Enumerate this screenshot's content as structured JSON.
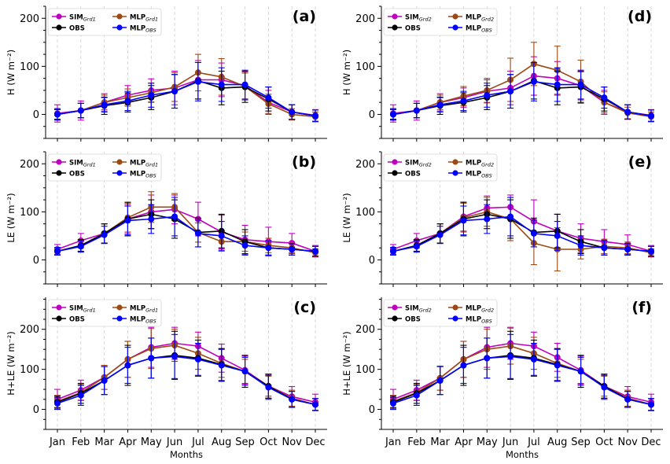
{
  "chart_data": {
    "type": "line",
    "xlabel": "Months",
    "categories": [
      "Jan",
      "Feb",
      "Mar",
      "Apr",
      "May",
      "Jun",
      "Jul",
      "Aug",
      "Sep",
      "Oct",
      "Nov",
      "Dec"
    ],
    "colors": {
      "SIM": "#c000c0",
      "MLP": "#9c4a14",
      "OBS": "#000000",
      "MLP_OBS": "#0000ff",
      "grid": "#cfcfcf"
    },
    "panels": [
      {
        "label": "(a)",
        "ylabel": "H (W m⁻²)",
        "ylim": [
          -50,
          225
        ],
        "yticks": [
          0,
          100,
          200
        ],
        "legend": [
          {
            "key": "SIM",
            "base": "SIM",
            "sub": "Grd1"
          },
          {
            "key": "MLP",
            "base": "MLP",
            "sub": "Grd1"
          },
          {
            "key": "OBS",
            "base": "OBS",
            "sub": ""
          },
          {
            "key": "MLP_OBS",
            "base": "MLP",
            "sub": "OBS"
          }
        ],
        "series": [
          {
            "key": "SIM",
            "values": [
              2,
              8,
              25,
              40,
              50,
              55,
              72,
              72,
              60,
              25,
              5,
              -2
            ],
            "err": [
              18,
              20,
              18,
              20,
              24,
              35,
              40,
              35,
              30,
              25,
              15,
              12
            ]
          },
          {
            "key": "MLP",
            "values": [
              0,
              8,
              25,
              35,
              45,
              57,
              87,
              78,
              58,
              22,
              0,
              -5
            ],
            "err": [
              12,
              15,
              15,
              18,
              20,
              30,
              38,
              38,
              28,
              20,
              12,
              10
            ]
          },
          {
            "key": "OBS",
            "values": [
              0,
              8,
              18,
              25,
              35,
              48,
              70,
              55,
              57,
              32,
              5,
              -3
            ],
            "err": [
              10,
              15,
              18,
              20,
              25,
              35,
              38,
              35,
              32,
              25,
              15,
              12
            ]
          },
          {
            "key": "MLP_OBS",
            "values": [
              0,
              8,
              20,
              28,
              40,
              48,
              68,
              62,
              62,
              35,
              5,
              -3
            ],
            "err": [
              12,
              15,
              15,
              20,
              25,
              35,
              40,
              35,
              30,
              22,
              15,
              12
            ]
          }
        ]
      },
      {
        "label": "(d)",
        "ylabel": "H (W m⁻²)",
        "ylim": [
          -50,
          225
        ],
        "yticks": [
          0,
          100,
          200
        ],
        "legend": [
          {
            "key": "SIM",
            "base": "SIM",
            "sub": "Grd2"
          },
          {
            "key": "MLP",
            "base": "MLP",
            "sub": "Grd2"
          },
          {
            "key": "OBS",
            "base": "OBS",
            "sub": ""
          },
          {
            "key": "MLP_OBS",
            "base": "MLP",
            "sub": "OBS"
          }
        ],
        "series": [
          {
            "key": "SIM",
            "values": [
              2,
              8,
              25,
              35,
              48,
              55,
              80,
              75,
              60,
              25,
              5,
              -2
            ],
            "err": [
              18,
              20,
              18,
              20,
              24,
              35,
              40,
              35,
              30,
              25,
              15,
              12
            ]
          },
          {
            "key": "MLP",
            "values": [
              0,
              8,
              25,
              38,
              50,
              72,
              105,
              92,
              68,
              25,
              3,
              -5
            ],
            "err": [
              12,
              15,
              15,
              20,
              25,
              45,
              45,
              50,
              45,
              22,
              12,
              10
            ]
          },
          {
            "key": "OBS",
            "values": [
              0,
              8,
              18,
              25,
              35,
              48,
              70,
              55,
              57,
              32,
              5,
              -3
            ],
            "err": [
              10,
              15,
              18,
              20,
              25,
              35,
              38,
              35,
              32,
              25,
              15,
              12
            ]
          },
          {
            "key": "MLP_OBS",
            "values": [
              0,
              8,
              20,
              28,
              40,
              48,
              68,
              62,
              62,
              35,
              5,
              -3
            ],
            "err": [
              12,
              15,
              15,
              20,
              25,
              35,
              40,
              35,
              30,
              22,
              15,
              12
            ]
          }
        ]
      },
      {
        "label": "(b)",
        "ylabel": "LE (W m⁻²)",
        "ylim": [
          -50,
          225
        ],
        "yticks": [
          0,
          100,
          200
        ],
        "legend": [
          {
            "key": "SIM",
            "base": "SIM",
            "sub": "Grd1"
          },
          {
            "key": "MLP",
            "base": "MLP",
            "sub": "Grd1"
          },
          {
            "key": "OBS",
            "base": "OBS",
            "sub": ""
          },
          {
            "key": "MLP_OBS",
            "base": "MLP",
            "sub": "OBS"
          }
        ],
        "series": [
          {
            "key": "SIM",
            "values": [
              22,
              40,
              55,
              85,
              100,
              105,
              85,
              58,
              42,
              38,
              35,
              18
            ],
            "err": [
              10,
              15,
              20,
              30,
              35,
              30,
              35,
              35,
              30,
              30,
              20,
              12
            ]
          },
          {
            "key": "MLP",
            "values": [
              18,
              30,
              55,
              88,
              110,
              110,
              57,
              38,
              38,
              30,
              25,
              15
            ],
            "err": [
              8,
              12,
              20,
              30,
              32,
              28,
              20,
              20,
              20,
              15,
              12,
              8
            ]
          },
          {
            "key": "OBS",
            "values": [
              18,
              30,
              55,
              85,
              95,
              85,
              57,
              60,
              38,
              25,
              22,
              18
            ],
            "err": [
              8,
              12,
              20,
              35,
              30,
              40,
              30,
              35,
              25,
              15,
              12,
              10
            ]
          },
          {
            "key": "MLP_OBS",
            "values": [
              18,
              28,
              52,
              82,
              85,
              90,
              55,
              50,
              30,
              25,
              22,
              18
            ],
            "err": [
              8,
              12,
              18,
              30,
              30,
              40,
              28,
              30,
              20,
              15,
              12,
              10
            ]
          }
        ]
      },
      {
        "label": "(e)",
        "ylabel": "LE (W m⁻²)",
        "ylim": [
          -50,
          225
        ],
        "yticks": [
          0,
          100,
          200
        ],
        "legend": [
          {
            "key": "SIM",
            "base": "SIM",
            "sub": "Grd2"
          },
          {
            "key": "MLP",
            "base": "MLP",
            "sub": "Grd2"
          },
          {
            "key": "OBS",
            "base": "OBS",
            "sub": ""
          },
          {
            "key": "MLP_OBS",
            "base": "MLP",
            "sub": "OBS"
          }
        ],
        "series": [
          {
            "key": "SIM",
            "values": [
              22,
              40,
              55,
              90,
              108,
              110,
              80,
              60,
              45,
              38,
              32,
              18
            ],
            "err": [
              10,
              15,
              20,
              30,
              25,
              25,
              45,
              35,
              30,
              25,
              20,
              12
            ]
          },
          {
            "key": "MLP",
            "values": [
              18,
              30,
              55,
              88,
              100,
              85,
              35,
              22,
              22,
              28,
              25,
              15
            ],
            "err": [
              8,
              12,
              20,
              30,
              30,
              45,
              45,
              45,
              20,
              15,
              12,
              8
            ]
          },
          {
            "key": "OBS",
            "values": [
              18,
              30,
              55,
              85,
              95,
              85,
              57,
              60,
              38,
              25,
              22,
              18
            ],
            "err": [
              8,
              12,
              20,
              35,
              30,
              40,
              30,
              35,
              25,
              15,
              12,
              10
            ]
          },
          {
            "key": "MLP_OBS",
            "values": [
              18,
              28,
              52,
              82,
              85,
              90,
              55,
              50,
              30,
              25,
              22,
              18
            ],
            "err": [
              8,
              12,
              18,
              30,
              30,
              40,
              28,
              30,
              20,
              15,
              12,
              10
            ]
          }
        ]
      },
      {
        "label": "(c)",
        "ylabel": "H+LE (W m⁻²)",
        "ylim": [
          -50,
          280
        ],
        "yticks": [
          0,
          100,
          200
        ],
        "legend": [
          {
            "key": "SIM",
            "base": "SIM",
            "sub": "Grd1"
          },
          {
            "key": "MLP",
            "base": "MLP",
            "sub": "Grd1"
          },
          {
            "key": "OBS",
            "base": "OBS",
            "sub": ""
          },
          {
            "key": "MLP_OBS",
            "base": "MLP",
            "sub": "OBS"
          }
        ],
        "series": [
          {
            "key": "SIM",
            "values": [
              25,
              48,
              80,
              125,
              155,
              165,
              158,
              128,
              98,
              58,
              32,
              18
            ],
            "err": [
              25,
              25,
              30,
              45,
              50,
              40,
              35,
              35,
              35,
              30,
              25,
              20
            ]
          },
          {
            "key": "MLP",
            "values": [
              20,
              42,
              80,
              125,
              152,
              160,
              140,
              115,
              95,
              58,
              28,
              12
            ],
            "err": [
              15,
              20,
              30,
              45,
              50,
              40,
              40,
              35,
              30,
              25,
              20,
              15
            ]
          },
          {
            "key": "OBS",
            "values": [
              18,
              40,
              72,
              110,
              128,
              135,
              128,
              112,
              95,
              58,
              25,
              12
            ],
            "err": [
              15,
              25,
              35,
              50,
              50,
              60,
              45,
              40,
              40,
              30,
              20,
              15
            ]
          },
          {
            "key": "MLP_OBS",
            "values": [
              15,
              35,
              72,
              110,
              128,
              132,
              125,
              110,
              95,
              55,
              25,
              12
            ],
            "err": [
              15,
              25,
              35,
              45,
              50,
              55,
              40,
              40,
              35,
              30,
              20,
              15
            ]
          }
        ]
      },
      {
        "label": "(f)",
        "ylabel": "H+LE (W m⁻²)",
        "ylim": [
          -50,
          280
        ],
        "yticks": [
          0,
          100,
          200
        ],
        "legend": [
          {
            "key": "SIM",
            "base": "SIM",
            "sub": "Grd2"
          },
          {
            "key": "MLP",
            "base": "MLP",
            "sub": "Grd2"
          },
          {
            "key": "OBS",
            "base": "OBS",
            "sub": ""
          },
          {
            "key": "MLP_OBS",
            "base": "MLP",
            "sub": "OBS"
          }
        ],
        "series": [
          {
            "key": "SIM",
            "values": [
              25,
              48,
              78,
              125,
              155,
              165,
              158,
              130,
              98,
              58,
              32,
              18
            ],
            "err": [
              25,
              25,
              30,
              45,
              50,
              40,
              35,
              35,
              35,
              30,
              25,
              20
            ]
          },
          {
            "key": "MLP",
            "values": [
              20,
              42,
              78,
              125,
              150,
              158,
              140,
              115,
              95,
              58,
              28,
              12
            ],
            "err": [
              15,
              20,
              30,
              45,
              50,
              45,
              40,
              35,
              30,
              25,
              20,
              15
            ]
          },
          {
            "key": "OBS",
            "values": [
              18,
              40,
              72,
              110,
              128,
              135,
              128,
              112,
              95,
              58,
              25,
              12
            ],
            "err": [
              15,
              25,
              35,
              50,
              50,
              60,
              45,
              40,
              40,
              30,
              20,
              15
            ]
          },
          {
            "key": "MLP_OBS",
            "values": [
              15,
              35,
              72,
              110,
              128,
              132,
              125,
              110,
              95,
              55,
              25,
              12
            ],
            "err": [
              15,
              25,
              35,
              45,
              50,
              55,
              40,
              40,
              35,
              30,
              20,
              15
            ]
          }
        ]
      }
    ]
  }
}
